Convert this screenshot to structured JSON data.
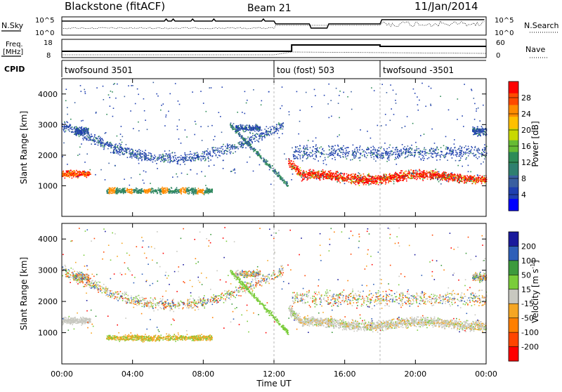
{
  "header": {
    "station": "Blackstone (fitACF)",
    "beam": "Beam 21",
    "date": "11/Jan/2014"
  },
  "aux_panels": {
    "nsky_label": "N.Sky",
    "nsky_ticks": [
      "10^5",
      "10^0"
    ],
    "nsearch_label": "N.Search",
    "nsearch_ticks": [
      "10^5",
      "10^0"
    ],
    "freq_label_line1": "Freq.",
    "freq_label_line2": "[MHz]",
    "freq_ticks": [
      "18",
      "8"
    ],
    "nave_label": "Nave",
    "nave_ticks": [
      "60",
      "0"
    ],
    "cpid_label": "CPID",
    "cpid_segments": [
      {
        "label": "twofsound 3501",
        "start_hour": 0
      },
      {
        "label": "tou (fost) 503",
        "start_hour": 12
      },
      {
        "label": "twofsound -3501",
        "start_hour": 18
      }
    ]
  },
  "colorbars": {
    "power": {
      "label": "Power [dB]",
      "ticks": [
        "28",
        "24",
        "20",
        "16",
        "12",
        "8",
        "4"
      ],
      "colors": [
        "#ff0000",
        "#ff4a00",
        "#ff8c00",
        "#ffc000",
        "#c8d800",
        "#66bb33",
        "#2e8b57",
        "#2f7f6f",
        "#3a5fa0",
        "#1f3fb0",
        "#0000ff"
      ]
    },
    "velocity": {
      "label": "Velocity [m s",
      "label_sup": "-1",
      "label_end": "]",
      "ticks": [
        "200",
        "100",
        "50",
        "15",
        "-15",
        "-50",
        "-100",
        "-200"
      ],
      "colors": [
        "#1a1a9c",
        "#2e5fb8",
        "#3d9a3d",
        "#7acc3a",
        "#c8c8c0",
        "#f5a623",
        "#ff7f00",
        "#ff4500",
        "#ff0000"
      ]
    }
  },
  "chart_data": [
    {
      "type": "heatmap",
      "name_ref": "power",
      "ylabel": "Slant Range [km]",
      "xlim": [
        "00:00",
        "24:00"
      ],
      "ylim": [
        0,
        4500
      ],
      "yticks": [
        1000,
        2000,
        3000,
        4000
      ],
      "colorscale": "Power [dB]",
      "features": [
        {
          "desc": "ground scatter",
          "t_start": 0,
          "t_end": 1.5,
          "range_center": 1400,
          "power_db": 24
        },
        {
          "desc": "band",
          "t_start": 2.5,
          "t_end": 8.5,
          "range_center": 850,
          "power_db": 16
        },
        {
          "desc": "arc",
          "t_start": 3,
          "t_end": 12,
          "range_center": 2000,
          "power_db": 6
        },
        {
          "desc": "strong band",
          "t_start": 13,
          "t_end": 24,
          "range_center": 1300,
          "power_db": 28
        }
      ]
    },
    {
      "type": "heatmap",
      "name_ref": "velocity",
      "ylabel": "Slant Range [km]",
      "xlabel": "Time UT",
      "xlim": [
        "00:00",
        "24:00"
      ],
      "ylim": [
        0,
        4500
      ],
      "yticks": [
        1000,
        2000,
        3000,
        4000
      ],
      "xticks": [
        "00:00",
        "04:00",
        "08:00",
        "12:00",
        "16:00",
        "20:00",
        "00:00"
      ],
      "colorscale": "Velocity [m s-1]",
      "features": [
        {
          "desc": "band",
          "t_start": 2.5,
          "t_end": 8.5,
          "range_center": 850,
          "velocity": -60
        },
        {
          "desc": "gray band",
          "t_start": 13,
          "t_end": 24,
          "range_center": 1400,
          "velocity": 0
        }
      ]
    }
  ]
}
